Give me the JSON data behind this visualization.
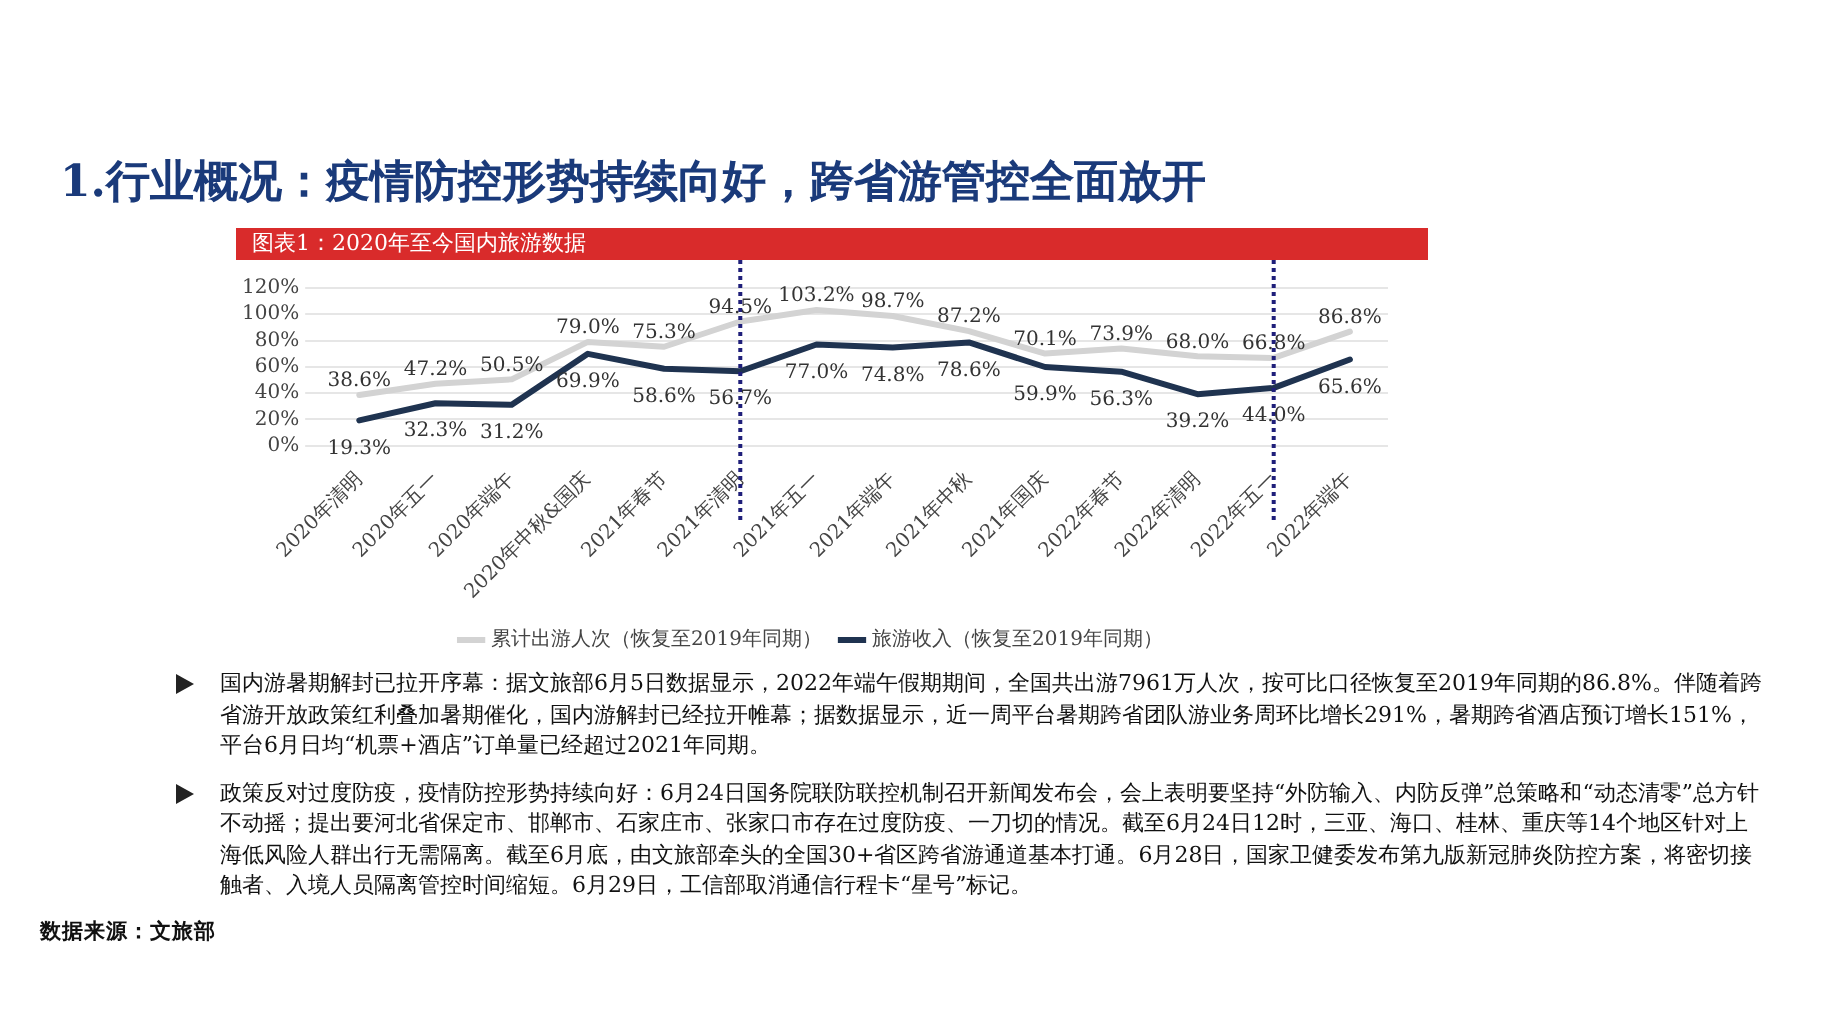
{
  "chart_data": {
    "type": "line",
    "title": "1.行业概况：疫情防控形势持续向好，跨省游管控全面放开",
    "subtitle": "图表1：2020年至今国内旅游数据",
    "categories": [
      "2020年清明",
      "2020年五一",
      "2020年端午",
      "2020年中秋&国庆",
      "2021年春节",
      "2021年清明",
      "2021年五一",
      "2021年端午",
      "2021年中秋",
      "2021年国庆",
      "2022年春节",
      "2022年清明",
      "2022年五一",
      "2022年端午"
    ],
    "series": [
      {
        "name": "累计出游人次（恢复至2019年同期）",
        "color": "#d3d3d3",
        "values": [
          38.6,
          47.2,
          50.5,
          79.0,
          75.3,
          94.5,
          103.2,
          98.7,
          87.2,
          70.1,
          73.9,
          68.0,
          66.8,
          86.8
        ],
        "value_labels": [
          "38.6%",
          "47.2%",
          "50.5%",
          "79.0%",
          "75.3%",
          "94.5%",
          "103.2%",
          "98.7%",
          "87.2%",
          "70.1%",
          "73.9%",
          "68.0%",
          "66.8%",
          "86.8%"
        ]
      },
      {
        "name": "旅游收入（恢复至2019年同期）",
        "color": "#1f3350",
        "values": [
          19.3,
          32.3,
          31.2,
          69.9,
          58.6,
          56.7,
          77.0,
          74.8,
          78.6,
          59.9,
          56.3,
          39.2,
          44.0,
          65.6
        ],
        "value_labels": [
          "19.3%",
          "32.3%",
          "31.2%",
          "69.9%",
          "58.6%",
          "56.7%",
          "77.0%",
          "74.8%",
          "78.6%",
          "59.9%",
          "56.3%",
          "39.2%",
          "44.0%",
          "65.6%"
        ]
      }
    ],
    "ylim": [
      0,
      120
    ],
    "yticks": [
      {
        "value": 0,
        "label": "0%"
      },
      {
        "value": 20,
        "label": "20%"
      },
      {
        "value": 40,
        "label": "40%"
      },
      {
        "value": 60,
        "label": "60%"
      },
      {
        "value": 80,
        "label": "80%"
      },
      {
        "value": 100,
        "label": "100%"
      },
      {
        "value": 120,
        "label": "120%"
      }
    ],
    "grid": "y",
    "legend": "bottom",
    "marker": "none",
    "line_style": "solid",
    "ref_lines": [
      {
        "axis": "x",
        "value": "2021年清明",
        "color": "#1f1f7a",
        "line_style": "dotted"
      },
      {
        "axis": "x",
        "value": "2022年五一",
        "color": "#1f1f7a",
        "line_style": "dotted"
      }
    ],
    "annotations": [
      "国内游暑期解封已拉开序幕：据文旅部6月5日数据显示，2022年端午假期期间，全国共出游7961万人次，按可比口径恢复至2019年同期的86.8%。伴随着跨省游开放政策红利叠加暑期催化，国内游解封已经拉开帷幕；据数据显示，近一周平台暑期跨省团队游业务周环比增长291%，暑期跨省酒店预订增长151%，平台6月日均“机票+酒店”订单量已经超过2021年同期。",
      "政策反对过度防疫，疫情防控形势持续向好：6月24日国务院联防联控机制召开新闻发布会，会上表明要坚持“外防输入、内防反弹”总策略和“动态清零”总方针不动摇；提出要河北省保定市、邯郸市、石家庄市、张家口市存在过度防疫、一刀切的情况。截至6月24日12时，三亚、海口、桂林、重庆等14个地区针对上海低风险人群出行无需隔离。截至6月底，由文旅部牵头的全国30+省区跨省游通道基本打通。6月28日，国家卫健委发布第九版新冠肺炎防控方案，将密切接触者、入境人员隔离管控时间缩短。6月29日，工信部取消通信行程卡“星号”标记。",
      "数据来源：文旅部"
    ]
  }
}
